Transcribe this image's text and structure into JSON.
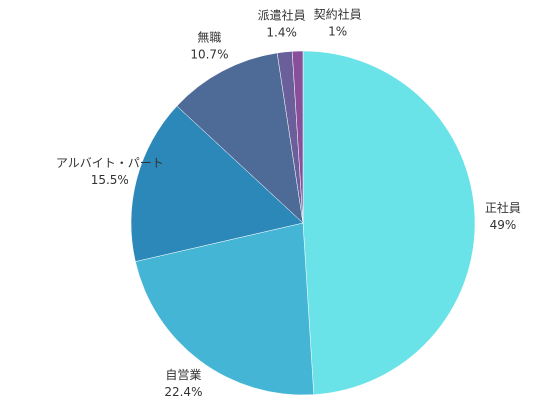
{
  "chart_data": {
    "type": "pie",
    "categories": [
      "正社員",
      "自営業",
      "アルバイト・パート",
      "無職",
      "派遣社員",
      "契約社員"
    ],
    "values": [
      49,
      22.4,
      15.5,
      10.7,
      1.4,
      1
    ],
    "value_labels": [
      "49%",
      "22.4%",
      "15.5%",
      "10.7%",
      "1.4%",
      "1%"
    ],
    "colors": [
      "#6ae3e8",
      "#45b5d5",
      "#2c88b8",
      "#4e6b98",
      "#6a5f9a",
      "#8a4f9a"
    ]
  }
}
